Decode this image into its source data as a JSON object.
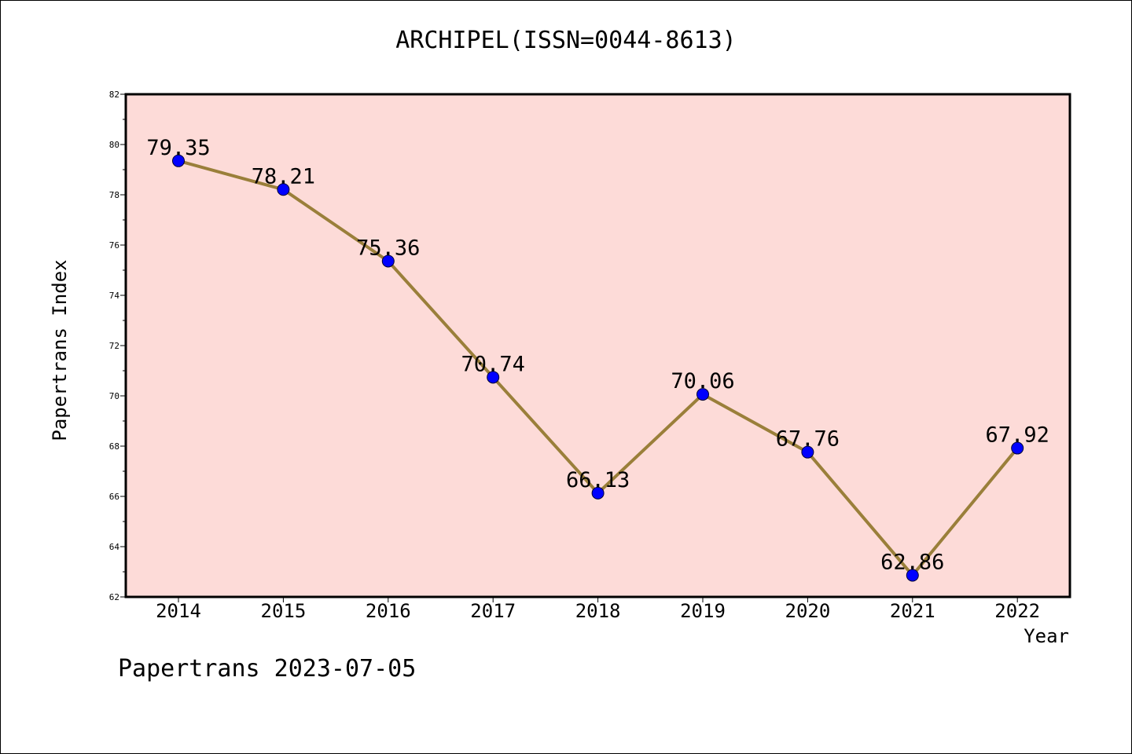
{
  "chart_data": {
    "type": "line",
    "title": "ARCHIPEL(ISSN=0044-8613)",
    "xlabel": "Year",
    "ylabel": "Papertrans Index",
    "categories": [
      "2014",
      "2015",
      "2016",
      "2017",
      "2018",
      "2019",
      "2020",
      "2021",
      "2022"
    ],
    "values": [
      79.35,
      78.21,
      75.36,
      70.74,
      66.13,
      70.06,
      67.76,
      62.86,
      67.92
    ],
    "value_labels": [
      "79.35",
      "78.21",
      "75.36",
      "70.74",
      "66.13",
      "70.06",
      "67.76",
      "62.86",
      "67.92"
    ],
    "ylim": [
      62,
      82
    ],
    "yticks": [
      "62",
      "64",
      "66",
      "68",
      "70",
      "72",
      "74",
      "76",
      "78",
      "80",
      "82"
    ],
    "grid": false,
    "colors": {
      "plot_background": "#fddbd8",
      "line": "#9a7f3a",
      "marker": "#0000ff"
    }
  },
  "footer": "Papertrans 2023-07-05"
}
